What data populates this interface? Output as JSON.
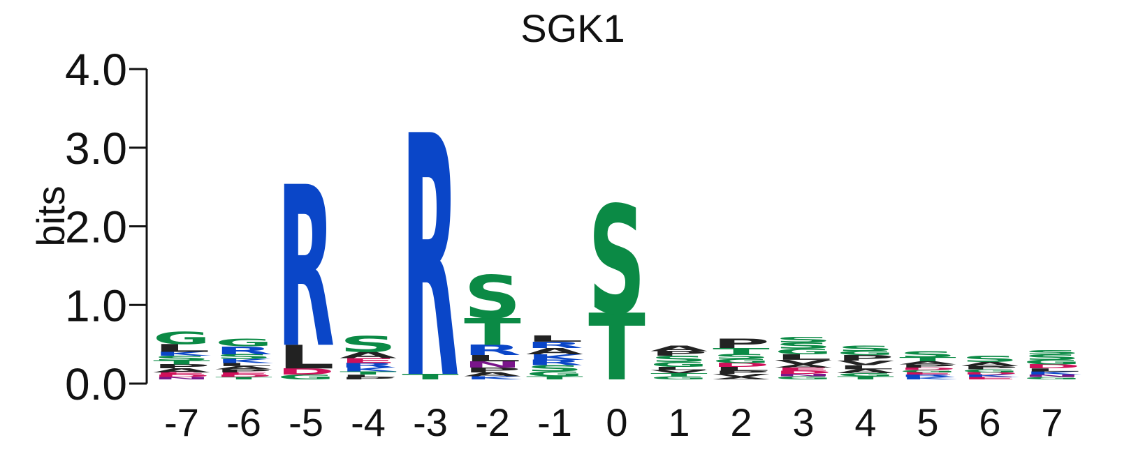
{
  "colors": {
    "R": "#0a46c8",
    "H": "#0a46c8",
    "K": "#0a46c8",
    "S": "#0b8a45",
    "T": "#0b8a45",
    "G": "#0b8a45",
    "Y": "#0b8a45",
    "C": "#0b8a45",
    "L": "#222222",
    "A": "#222222",
    "P": "#222222",
    "V": "#222222",
    "I": "#222222",
    "F": "#222222",
    "W": "#222222",
    "M": "#222222",
    "D": "#d0105a",
    "E": "#d0105a",
    "N": "#7a158a",
    "Q": "#7a158a"
  },
  "chart_data": {
    "type": "sequence-logo",
    "title": "SGK1",
    "ylabel": "bits",
    "ylim": [
      0,
      4
    ],
    "yticks": [
      "0.0",
      "1.0",
      "2.0",
      "3.0",
      "4.0"
    ],
    "positions": [
      "-7",
      "-6",
      "-5",
      "-4",
      "-3",
      "-2",
      "-1",
      "0",
      "1",
      "2",
      "3",
      "4",
      "5",
      "6",
      "7"
    ],
    "stacks": [
      [
        [
          "N",
          0.03
        ],
        [
          "D",
          0.03
        ],
        [
          "E",
          0.03
        ],
        [
          "A",
          0.05
        ],
        [
          "P",
          0.05
        ],
        [
          "T",
          0.05
        ],
        [
          "S",
          0.06
        ],
        [
          "K",
          0.05
        ],
        [
          "L",
          0.1
        ],
        [
          "G",
          0.16
        ]
      ],
      [
        [
          "T",
          0.03
        ],
        [
          "D",
          0.03
        ],
        [
          "E",
          0.03
        ],
        [
          "P",
          0.04
        ],
        [
          "A",
          0.04
        ],
        [
          "L",
          0.04
        ],
        [
          "K",
          0.05
        ],
        [
          "S",
          0.06
        ],
        [
          "R",
          0.1
        ],
        [
          "G",
          0.1
        ]
      ],
      [
        [
          "G",
          0.06
        ],
        [
          "D",
          0.08
        ],
        [
          "L",
          0.3
        ],
        [
          "R",
          2.05
        ]
      ],
      [
        [
          "P",
          0.03
        ],
        [
          "L",
          0.03
        ],
        [
          "T",
          0.04
        ],
        [
          "K",
          0.05
        ],
        [
          "R",
          0.06
        ],
        [
          "E",
          0.06
        ],
        [
          "A",
          0.08
        ],
        [
          "S",
          0.2
        ]
      ],
      [
        [
          "T",
          0.07
        ],
        [
          "R",
          3.08
        ]
      ],
      [
        [
          "K",
          0.04
        ],
        [
          "A",
          0.05
        ],
        [
          "P",
          0.06
        ],
        [
          "N",
          0.08
        ],
        [
          "L",
          0.08
        ],
        [
          "R",
          0.13
        ],
        [
          "T",
          0.34
        ],
        [
          "S",
          0.55
        ]
      ],
      [
        [
          "T",
          0.04
        ],
        [
          "G",
          0.06
        ],
        [
          "S",
          0.08
        ],
        [
          "R",
          0.07
        ],
        [
          "K",
          0.07
        ],
        [
          "A",
          0.08
        ],
        [
          "R",
          0.08
        ],
        [
          "L",
          0.08
        ]
      ],
      [
        [
          "T",
          0.85
        ],
        [
          "S",
          1.38
        ]
      ],
      [
        [
          "G",
          0.04
        ],
        [
          "T",
          0.04
        ],
        [
          "V",
          0.04
        ],
        [
          "L",
          0.04
        ],
        [
          "G",
          0.06
        ],
        [
          "S",
          0.08
        ],
        [
          "P",
          0.06
        ],
        [
          "A",
          0.07
        ]
      ],
      [
        [
          "A",
          0.03
        ],
        [
          "V",
          0.04
        ],
        [
          "P",
          0.04
        ],
        [
          "L",
          0.05
        ],
        [
          "D",
          0.05
        ],
        [
          "G",
          0.05
        ],
        [
          "S",
          0.06
        ],
        [
          "T",
          0.08
        ],
        [
          "P",
          0.12
        ]
      ],
      [
        [
          "G",
          0.04
        ],
        [
          "N",
          0.03
        ],
        [
          "D",
          0.04
        ],
        [
          "E",
          0.04
        ],
        [
          "A",
          0.04
        ],
        [
          "V",
          0.06
        ],
        [
          "L",
          0.07
        ],
        [
          "G",
          0.07
        ],
        [
          "S",
          0.08
        ],
        [
          "S",
          0.07
        ]
      ],
      [
        [
          "T",
          0.04
        ],
        [
          "G",
          0.04
        ],
        [
          "A",
          0.05
        ],
        [
          "L",
          0.05
        ],
        [
          "V",
          0.06
        ],
        [
          "P",
          0.07
        ],
        [
          "G",
          0.05
        ],
        [
          "S",
          0.07
        ]
      ],
      [
        [
          "K",
          0.03
        ],
        [
          "R",
          0.03
        ],
        [
          "E",
          0.03
        ],
        [
          "G",
          0.03
        ],
        [
          "D",
          0.03
        ],
        [
          "P",
          0.04
        ],
        [
          "A",
          0.04
        ],
        [
          "T",
          0.05
        ],
        [
          "S",
          0.08
        ]
      ],
      [
        [
          "E",
          0.03
        ],
        [
          "K",
          0.03
        ],
        [
          "D",
          0.03
        ],
        [
          "G",
          0.04
        ],
        [
          "P",
          0.04
        ],
        [
          "A",
          0.05
        ],
        [
          "S",
          0.08
        ]
      ],
      [
        [
          "G",
          0.03
        ],
        [
          "N",
          0.03
        ],
        [
          "K",
          0.04
        ],
        [
          "L",
          0.04
        ],
        [
          "D",
          0.05
        ],
        [
          "G",
          0.06
        ],
        [
          "S",
          0.07
        ],
        [
          "S",
          0.05
        ]
      ]
    ]
  }
}
